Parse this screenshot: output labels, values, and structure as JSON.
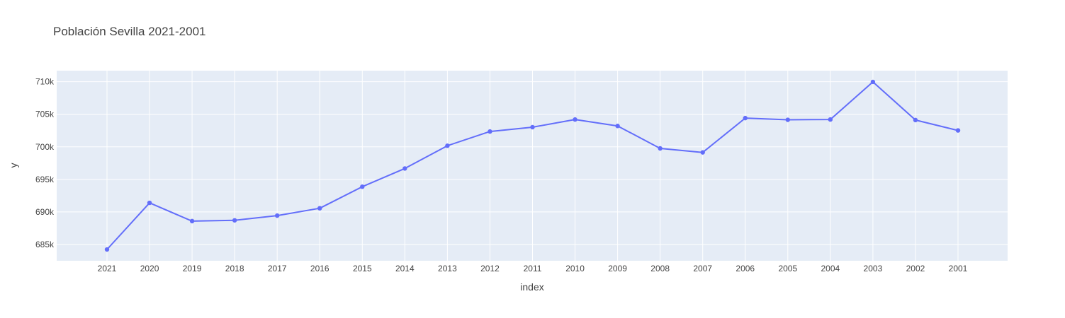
{
  "chart_data": {
    "type": "line",
    "title": "Población Sevilla 2021-2001",
    "xlabel": "index",
    "ylabel": "y",
    "categories": [
      "2021",
      "2020",
      "2019",
      "2018",
      "2017",
      "2016",
      "2015",
      "2014",
      "2013",
      "2012",
      "2011",
      "2010",
      "2009",
      "2008",
      "2007",
      "2006",
      "2005",
      "2004",
      "2003",
      "2002",
      "2001"
    ],
    "series": [
      {
        "values": [
          684234,
          691395,
          688592,
          688711,
          689434,
          690566,
          693878,
          696676,
          700169,
          702355,
          703021,
          704198,
          703206,
          699759,
          699145,
          704414,
          704154,
          704203,
          709975,
          704114,
          702520
        ]
      }
    ],
    "yticks": [
      685000,
      690000,
      695000,
      700000,
      705000,
      710000
    ],
    "ytick_labels": [
      "685k",
      "690k",
      "695k",
      "700k",
      "705k",
      "710k"
    ],
    "ylim": [
      682500,
      711700
    ],
    "grid": true,
    "legend": "none",
    "colors": {
      "line": "#636efa",
      "plot_background": "#e5ecf6",
      "grid": "#ffffff",
      "text": "#444444"
    }
  }
}
